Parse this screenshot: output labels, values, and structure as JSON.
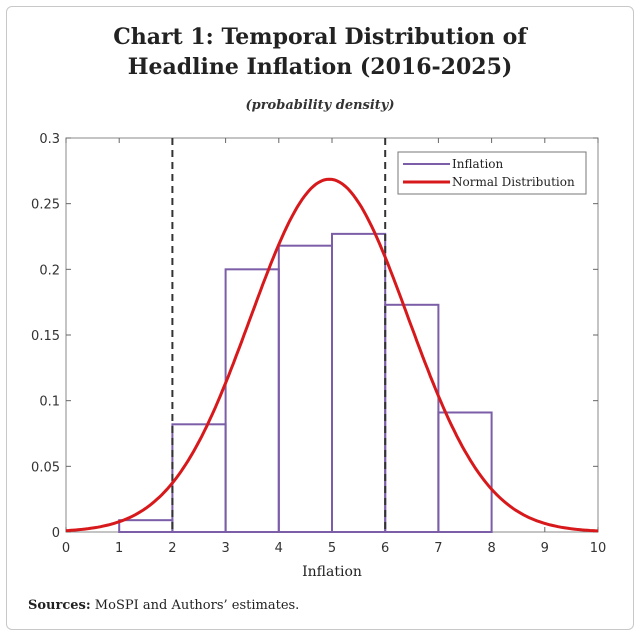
{
  "chart_data": {
    "type": "bar",
    "title": "Chart 1: Temporal Distribution of Headline Inflation (2016-2025)",
    "subtitle": "(probability density)",
    "xlabel": "Inflation",
    "ylabel": "",
    "xlim": [
      0,
      10
    ],
    "ylim": [
      0,
      0.3
    ],
    "xticks": [
      "0",
      "1",
      "2",
      "3",
      "4",
      "5",
      "6",
      "7",
      "8",
      "9",
      "10"
    ],
    "yticks": [
      "0",
      "0.05",
      "0.1",
      "0.15",
      "0.2",
      "0.25",
      "0.3"
    ],
    "grid": false,
    "legend": "top-right",
    "bins": [
      [
        1,
        2
      ],
      [
        2,
        3
      ],
      [
        3,
        4
      ],
      [
        4,
        5
      ],
      [
        5,
        6
      ],
      [
        6,
        7
      ],
      [
        7,
        8
      ]
    ],
    "series": [
      {
        "name": "Inflation",
        "type": "histogram",
        "color": "#7b5ea7",
        "values": [
          0.009,
          0.082,
          0.2,
          0.218,
          0.227,
          0.173,
          0.091
        ]
      },
      {
        "name": "Normal Distribution",
        "type": "line",
        "color": "#d7191c",
        "mean": 4.95,
        "sd": 1.485
      }
    ],
    "reference_lines": {
      "x": [
        2,
        6
      ],
      "style": "dashed",
      "color": "#333333"
    }
  },
  "source": {
    "label": "Sources:",
    "text": " MoSPI and Authors’ estimates."
  }
}
